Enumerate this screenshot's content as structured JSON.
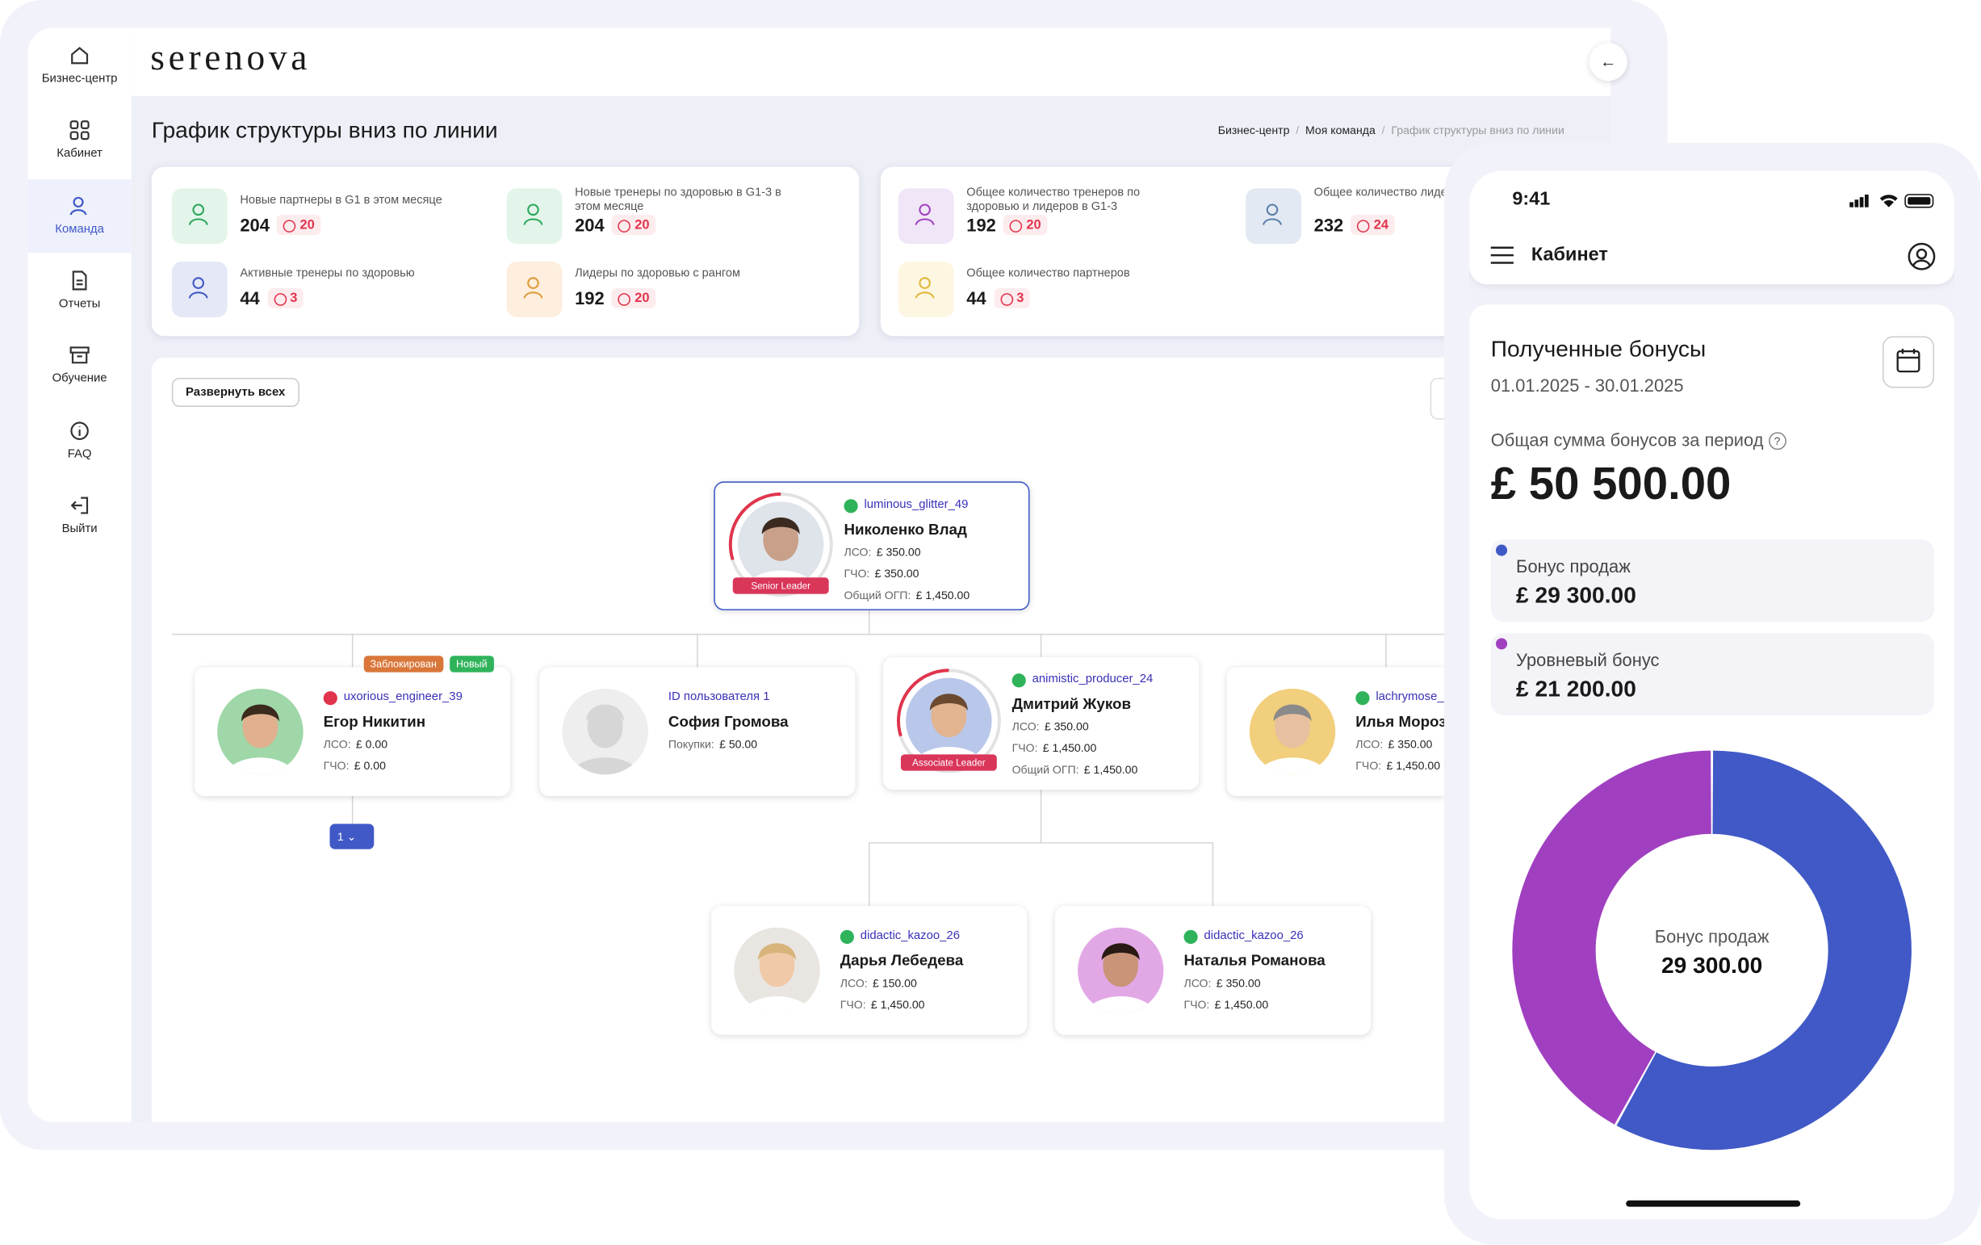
{
  "brand": "serenova",
  "sidebar": [
    "Бизнес-центр",
    "Кабинет",
    "Команда",
    "Отчеты",
    "Обучение",
    "FAQ",
    "Выйти"
  ],
  "page_title": "График структуры вниз по линии",
  "breadcrumbs": [
    "Бизнес-центр",
    "Моя команда",
    "График структуры вниз по линии"
  ],
  "stats": [
    {
      "label": "Новые партнеры в G1 в этом месяце",
      "value": 204,
      "delta": 20
    },
    {
      "label": "Новые тренеры по здоровью в G1-3 в этом месяце",
      "value": 204,
      "delta": 20
    },
    {
      "label": "Активные тренеры по здоровью",
      "value": 44,
      "delta": 3
    },
    {
      "label": "Лидеры по здоровью с рангом",
      "value": 192,
      "delta": 20
    },
    {
      "label": "Общее количество тренеров по здоровью и лидеров в G1-3",
      "value": 192,
      "delta": 20
    },
    {
      "label": "Общее количество лидеров и тренеров по оздоровлению",
      "value": 232,
      "delta": 24
    },
    {
      "label": "Общее количество партнеров",
      "value": 44,
      "delta": 3
    }
  ],
  "expand_button": "Развернуть всех",
  "nodes": [
    {
      "username": "luminous_glitter_49",
      "name": "Николенко Влад",
      "rank": "Senior Leader",
      "fields": [
        {
          "label": "ЛСО:",
          "value": "£ 350.00"
        },
        {
          "label": "ГЧО:",
          "value": "£ 350.00"
        },
        {
          "label": "Общий ОГП:",
          "value": "£ 1,450.00"
        }
      ]
    },
    {
      "badges": [
        "Заблокирован",
        "Новый"
      ],
      "username": "uxorious_engineer_39",
      "name": "Егор Никитин",
      "fields": [
        {
          "label": "ЛСО:",
          "value": "£ 0.00"
        },
        {
          "label": "ГЧО:",
          "value": "£ 0.00"
        }
      ],
      "pager": "1"
    },
    {
      "username": "ID пользователя 1",
      "name": "София Громова",
      "fields": [
        {
          "label": "Покупки:",
          "value": "£ 50.00"
        }
      ]
    },
    {
      "username": "animistic_producer_24",
      "name": "Дмитрий Жуков",
      "rank": "Associate Leader",
      "fields": [
        {
          "label": "ЛСО:",
          "value": "£ 350.00"
        },
        {
          "label": "ГЧО:",
          "value": "£ 1,450.00"
        },
        {
          "label": "Общий ОГП:",
          "value": "£ 1,450.00"
        }
      ]
    },
    {
      "username": "lachrymose_",
      "name": "Илья Мороз",
      "fields": [
        {
          "label": "ЛСО:",
          "value": "£ 350.00"
        },
        {
          "label": "ГЧО:",
          "value": "£ 1,450.00"
        }
      ]
    },
    {
      "username": "didactic_kazoo_26",
      "name": "Дарья Лебедева",
      "fields": [
        {
          "label": "ЛСО:",
          "value": "£ 150.00"
        },
        {
          "label": "ГЧО:",
          "value": "£ 1,450.00"
        }
      ]
    },
    {
      "username": "didactic_kazoo_26",
      "name": "Наталья Романова",
      "fields": [
        {
          "label": "ЛСО:",
          "value": "£ 350.00"
        },
        {
          "label": "ГЧО:",
          "value": "£ 1,450.00"
        }
      ]
    }
  ],
  "phone": {
    "time": "9:41",
    "title": "Кабинет",
    "card_title": "Полученные бонусы",
    "period": "01.01.2025 - 30.01.2025",
    "total_label": "Общая сумма бонусов за период",
    "total": "£ 50 500.00",
    "items": [
      {
        "name": "Бонус продаж",
        "value_label": "£ 29 300.00",
        "value": 29300,
        "color": "#4059c6"
      },
      {
        "name": "Уровневый бонус",
        "value_label": "£ 21 200.00",
        "value": 21200,
        "color": "#a040c0"
      }
    ],
    "center_value": "29 300.00"
  }
}
